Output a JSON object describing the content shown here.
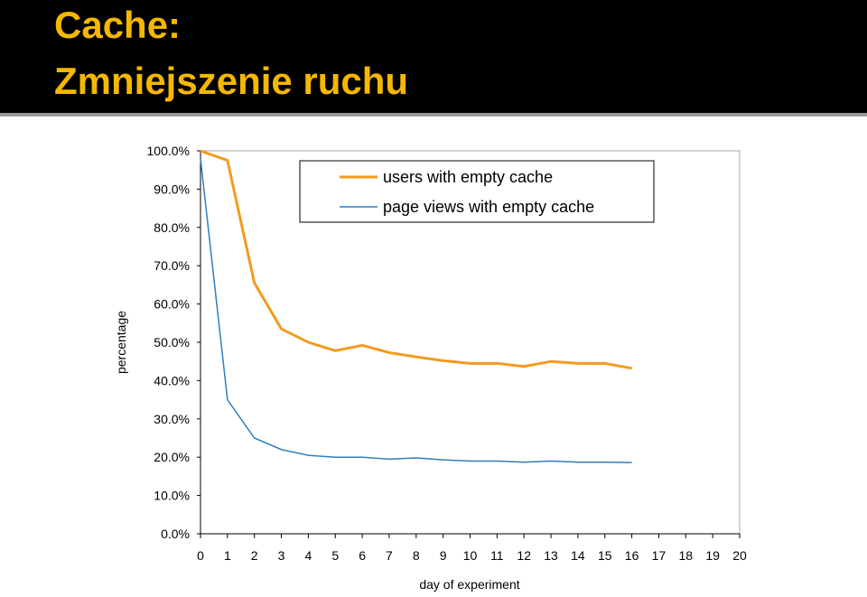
{
  "slide": {
    "title": [
      "Cache:",
      "Zmniejszenie ruchu"
    ]
  },
  "chart_data": {
    "type": "line",
    "x_label": "day of experiment",
    "y_label": "percentage",
    "x": [
      0,
      1,
      2,
      3,
      4,
      5,
      6,
      7,
      8,
      9,
      10,
      11,
      12,
      13,
      14,
      15,
      16
    ],
    "series": [
      {
        "name": "users with empty cache",
        "color": "#f39b1e",
        "values": [
          100,
          97.5,
          65.5,
          53.5,
          50,
          47.8,
          49.2,
          47.3,
          46.2,
          45.2,
          44.5,
          44.5,
          43.7,
          45,
          44.5,
          44.5,
          43.2
        ]
      },
      {
        "name": "page views with empty cache",
        "color": "#2f7fc1",
        "values": [
          98,
          35,
          25,
          22,
          20.5,
          20,
          20,
          19.5,
          19.8,
          19.3,
          19,
          19,
          18.7,
          19,
          18.7,
          18.7,
          18.6
        ]
      }
    ],
    "xlim": [
      0,
      20
    ],
    "xticks": [
      0,
      1,
      2,
      3,
      4,
      5,
      6,
      7,
      8,
      9,
      10,
      11,
      12,
      13,
      14,
      15,
      16,
      17,
      18,
      19,
      20
    ],
    "ylim": [
      0,
      100
    ],
    "yticks": [
      {
        "value": 0,
        "label": "0.0%"
      },
      {
        "value": 10,
        "label": "10.0%"
      },
      {
        "value": 20,
        "label": "20.0%"
      },
      {
        "value": 30,
        "label": "30.0%"
      },
      {
        "value": 40,
        "label": "40.0%"
      },
      {
        "value": 50,
        "label": "50.0%"
      },
      {
        "value": 60,
        "label": "60.0%"
      },
      {
        "value": 70,
        "label": "70.0%"
      },
      {
        "value": 80,
        "label": "80.0%"
      },
      {
        "value": 90,
        "label": "90.0%"
      },
      {
        "value": 100,
        "label": "100.0%"
      }
    ],
    "legend": "upper-right",
    "grid": false
  }
}
